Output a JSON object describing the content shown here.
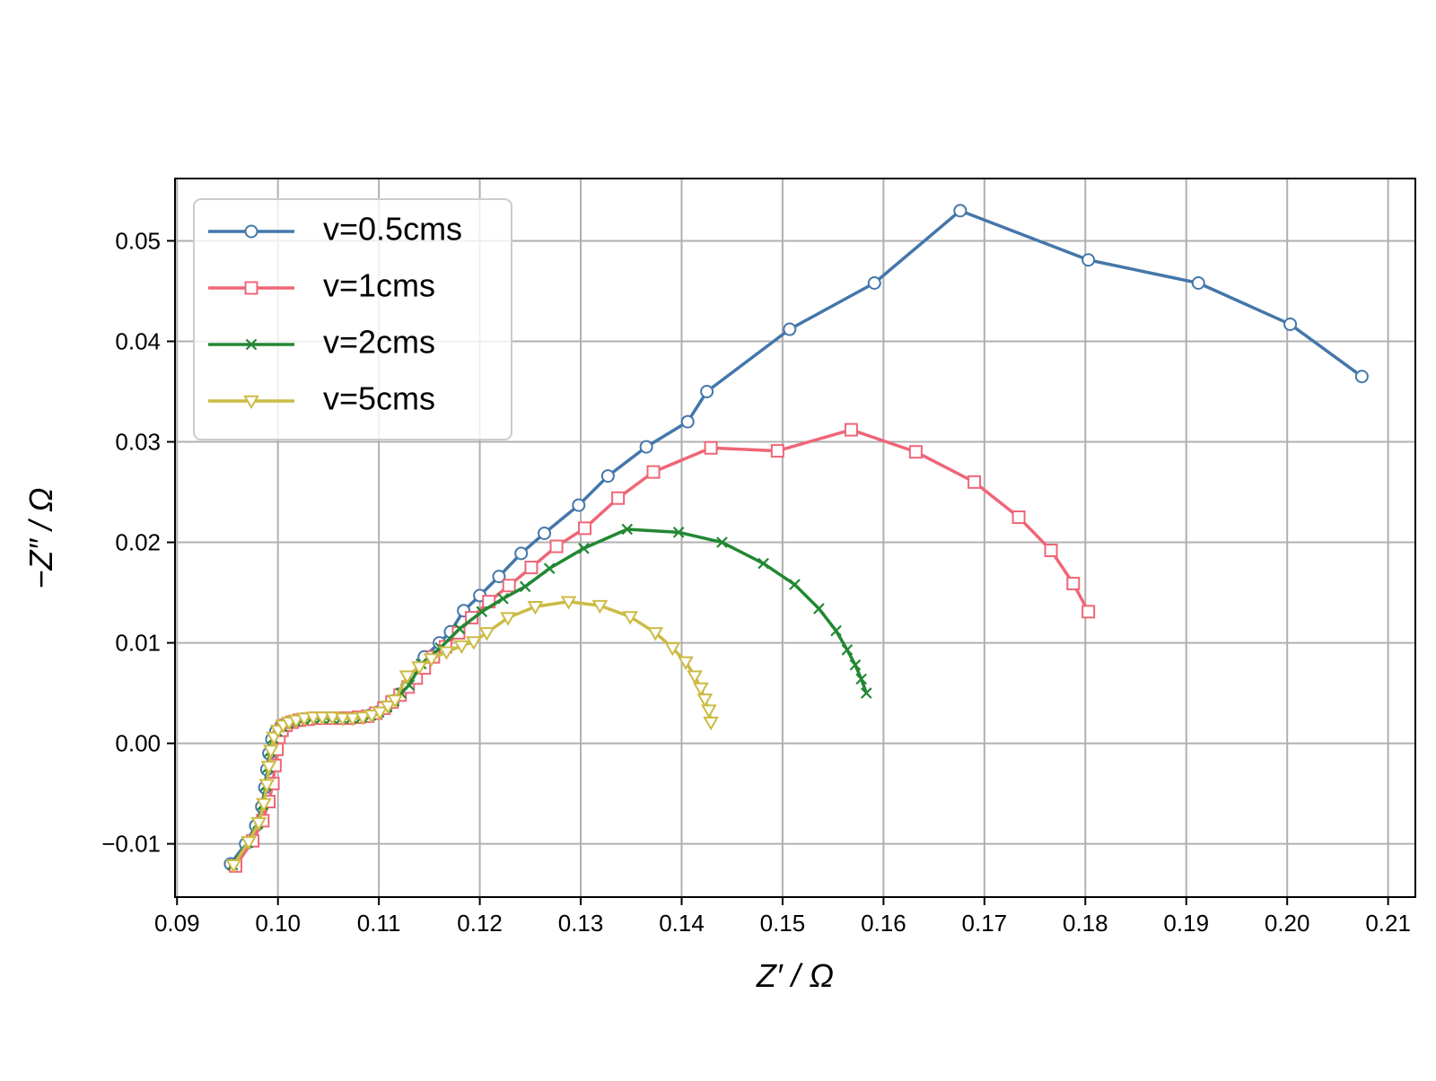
{
  "chart_data": {
    "type": "line",
    "xlabel": "Z′ / Ω",
    "ylabel": "−Z″ / Ω",
    "xlim": [
      0.0898,
      0.2127
    ],
    "ylim": [
      -0.0153,
      0.0562
    ],
    "xticks": [
      {
        "value": 0.09,
        "label": "0.09"
      },
      {
        "value": 0.1,
        "label": "0.10"
      },
      {
        "value": 0.11,
        "label": "0.11"
      },
      {
        "value": 0.12,
        "label": "0.12"
      },
      {
        "value": 0.13,
        "label": "0.13"
      },
      {
        "value": 0.14,
        "label": "0.14"
      },
      {
        "value": 0.15,
        "label": "0.15"
      },
      {
        "value": 0.16,
        "label": "0.16"
      },
      {
        "value": 0.17,
        "label": "0.17"
      },
      {
        "value": 0.18,
        "label": "0.18"
      },
      {
        "value": 0.19,
        "label": "0.19"
      },
      {
        "value": 0.2,
        "label": "0.20"
      },
      {
        "value": 0.21,
        "label": "0.21"
      }
    ],
    "yticks": [
      {
        "value": -0.01,
        "label": "−0.01"
      },
      {
        "value": 0.0,
        "label": "0.00"
      },
      {
        "value": 0.01,
        "label": "0.01"
      },
      {
        "value": 0.02,
        "label": "0.02"
      },
      {
        "value": 0.03,
        "label": "0.03"
      },
      {
        "value": 0.04,
        "label": "0.04"
      },
      {
        "value": 0.05,
        "label": "0.05"
      }
    ],
    "grid": true,
    "legend": "upper left",
    "series": [
      {
        "name": "v=0.5cms",
        "color": "#4477aa",
        "marker": "circle",
        "x": [
          0.0953,
          0.0968,
          0.0978,
          0.0984,
          0.0987,
          0.0989,
          0.0991,
          0.0994,
          0.0998,
          0.1003,
          0.1009,
          0.1016,
          0.1024,
          0.1033,
          0.1042,
          0.1052,
          0.1062,
          0.1072,
          0.1082,
          0.1091,
          0.1099,
          0.1107,
          0.1114,
          0.1121,
          0.1128,
          0.1135,
          0.1145,
          0.116,
          0.1171,
          0.1184,
          0.12,
          0.1219,
          0.1241,
          0.1264,
          0.1298,
          0.1327,
          0.1365,
          0.1406,
          0.1425,
          0.1507,
          0.1591,
          0.1676,
          0.1803,
          0.1912,
          0.2003,
          0.2074
        ],
        "values": [
          -0.012,
          -0.01,
          -0.0082,
          -0.0063,
          -0.0044,
          -0.0026,
          -0.001,
          0.0004,
          0.0012,
          0.0017,
          0.002,
          0.0022,
          0.0024,
          0.0025,
          0.0025,
          0.0025,
          0.0025,
          0.0025,
          0.0026,
          0.0028,
          0.0031,
          0.0036,
          0.0042,
          0.0049,
          0.0057,
          0.0066,
          0.0086,
          0.01,
          0.0111,
          0.0132,
          0.0147,
          0.0166,
          0.0189,
          0.0209,
          0.0237,
          0.0266,
          0.0295,
          0.032,
          0.035,
          0.0412,
          0.0458,
          0.053,
          0.0481,
          0.0458,
          0.0417,
          0.0365
        ]
      },
      {
        "name": "v=1cms",
        "color": "#ee6677",
        "marker": "square",
        "x": [
          0.0958,
          0.0975,
          0.0985,
          0.0991,
          0.0995,
          0.0997,
          0.0999,
          0.1001,
          0.1004,
          0.1008,
          0.1014,
          0.1021,
          0.103,
          0.104,
          0.105,
          0.106,
          0.107,
          0.108,
          0.1089,
          0.1097,
          0.1105,
          0.1113,
          0.1121,
          0.1129,
          0.1137,
          0.1145,
          0.1154,
          0.1166,
          0.1179,
          0.1192,
          0.1209,
          0.1229,
          0.1251,
          0.1276,
          0.1304,
          0.1337,
          0.1372,
          0.1429,
          0.1495,
          0.1568,
          0.1632,
          0.169,
          0.1734,
          0.1766,
          0.1788,
          0.1803
        ],
        "values": [
          -0.0122,
          -0.0097,
          -0.0077,
          -0.0058,
          -0.004,
          -0.0022,
          -0.0006,
          0.0006,
          0.0013,
          0.0018,
          0.0021,
          0.0023,
          0.0024,
          0.0025,
          0.0025,
          0.0025,
          0.0025,
          0.0026,
          0.0027,
          0.003,
          0.0035,
          0.0041,
          0.0048,
          0.0056,
          0.0065,
          0.0075,
          0.0086,
          0.0096,
          0.011,
          0.0125,
          0.0141,
          0.0157,
          0.0175,
          0.0196,
          0.0214,
          0.0244,
          0.027,
          0.0294,
          0.0291,
          0.0312,
          0.029,
          0.026,
          0.0225,
          0.0192,
          0.0159,
          0.0131
        ]
      },
      {
        "name": "v=2cms",
        "color": "#228833",
        "marker": "x",
        "x": [
          0.0955,
          0.097,
          0.098,
          0.0985,
          0.0988,
          0.099,
          0.0992,
          0.0995,
          0.0999,
          0.1004,
          0.101,
          0.1017,
          0.1025,
          0.1034,
          0.1043,
          0.1053,
          0.1063,
          0.1073,
          0.1083,
          0.1092,
          0.11,
          0.1108,
          0.1115,
          0.1122,
          0.113,
          0.1142,
          0.1161,
          0.118,
          0.1202,
          0.1223,
          0.1245,
          0.1269,
          0.1303,
          0.1346,
          0.1397,
          0.144,
          0.1481,
          0.1512,
          0.1536,
          0.1553,
          0.1564,
          0.1572,
          0.1578,
          0.1583
        ],
        "values": [
          -0.0121,
          -0.0099,
          -0.008,
          -0.0061,
          -0.0042,
          -0.0024,
          -0.0008,
          0.0005,
          0.0012,
          0.0017,
          0.002,
          0.0022,
          0.0024,
          0.0025,
          0.0025,
          0.0025,
          0.0025,
          0.0025,
          0.0026,
          0.0028,
          0.0031,
          0.0036,
          0.0042,
          0.005,
          0.0058,
          0.0079,
          0.0095,
          0.0114,
          0.0131,
          0.0144,
          0.0156,
          0.0174,
          0.0194,
          0.0213,
          0.021,
          0.02,
          0.0179,
          0.0158,
          0.0134,
          0.0112,
          0.0093,
          0.0078,
          0.0064,
          0.005
        ]
      },
      {
        "name": "v=5cms",
        "color": "#ccbb44",
        "marker": "triangle-down",
        "x": [
          0.0956,
          0.0971,
          0.0981,
          0.0986,
          0.0989,
          0.0991,
          0.0993,
          0.0996,
          0.1,
          0.1005,
          0.1011,
          0.1018,
          0.1026,
          0.1035,
          0.1044,
          0.1054,
          0.1064,
          0.1074,
          0.1084,
          0.1093,
          0.1101,
          0.1109,
          0.1116,
          0.1128,
          0.114,
          0.1152,
          0.1167,
          0.1182,
          0.1194,
          0.1207,
          0.1228,
          0.1255,
          0.1288,
          0.1319,
          0.1349,
          0.1374,
          0.1391,
          0.1404,
          0.1413,
          0.1419,
          0.1423,
          0.1427,
          0.1429
        ],
        "values": [
          -0.0121,
          -0.0098,
          -0.0079,
          -0.006,
          -0.0041,
          -0.0023,
          -0.0007,
          0.0006,
          0.0013,
          0.0018,
          0.0021,
          0.0023,
          0.0025,
          0.0026,
          0.0026,
          0.0026,
          0.0025,
          0.0025,
          0.0026,
          0.0028,
          0.0031,
          0.0037,
          0.0043,
          0.0067,
          0.0076,
          0.0084,
          0.0091,
          0.0097,
          0.0101,
          0.011,
          0.0125,
          0.0136,
          0.0141,
          0.0137,
          0.0126,
          0.011,
          0.0095,
          0.0081,
          0.0067,
          0.0055,
          0.0044,
          0.0033,
          0.0021
        ]
      }
    ]
  }
}
